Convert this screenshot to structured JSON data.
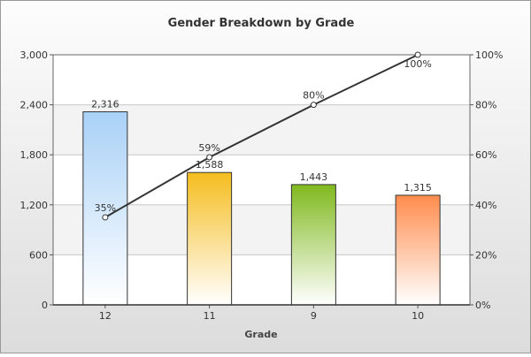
{
  "chart_data": {
    "type": "bar",
    "title": "Gender Breakdown by Grade",
    "xlabel": "Grade",
    "ylabel": "",
    "categories": [
      "12",
      "11",
      "9",
      "10"
    ],
    "series": [
      {
        "values": [
          2316,
          1588,
          1443,
          1315
        ],
        "labels": [
          "2,316",
          "1,588",
          "1,443",
          "1,315"
        ],
        "colors": [
          "#a9d1f7",
          "#f5bd1f",
          "#80b91e",
          "#ff8c4d"
        ]
      }
    ],
    "line_series": {
      "axis": "right",
      "values": [
        35,
        59,
        80,
        100
      ],
      "labels": [
        "35%",
        "59%",
        "80%",
        "100%"
      ]
    },
    "ylim": [
      0,
      3000
    ],
    "yticks": [
      0,
      600,
      1200,
      1800,
      2400,
      3000
    ],
    "ytick_labels": [
      "0",
      "600",
      "1,200",
      "1,800",
      "2,400",
      "3,000"
    ],
    "y2lim": [
      0,
      100
    ],
    "y2ticks": [
      0,
      20,
      40,
      60,
      80,
      100
    ],
    "y2tick_labels": [
      "0%",
      "20%",
      "40%",
      "60%",
      "80%",
      "100%"
    ],
    "grid": true,
    "legend": "none"
  }
}
